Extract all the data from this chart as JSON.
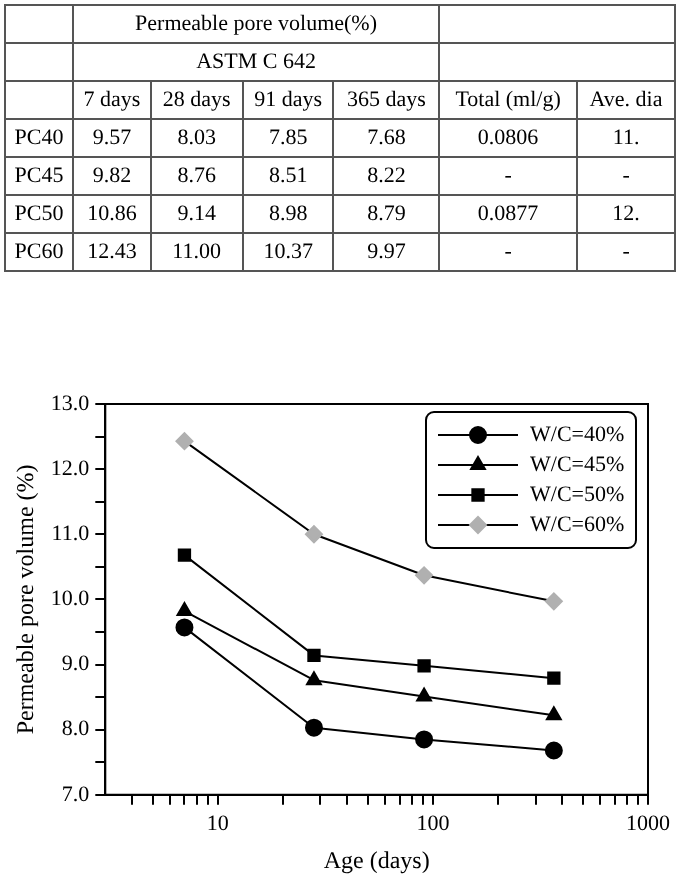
{
  "chart_data": [
    {
      "type": "other",
      "title": "Permeable pore volume(%)",
      "subtitle": "ASTM C 642",
      "categories": [
        "7 days",
        "28 days",
        "91 days",
        "365 days",
        "Total (ml/g)",
        "Ave. dia"
      ],
      "y_categories": [
        "PC40",
        "PC45",
        "PC50",
        "PC60"
      ],
      "cell_labels": [
        [
          "9.57",
          "8.03",
          "7.85",
          "7.68",
          "0.0806",
          "11."
        ],
        [
          "9.82",
          "8.76",
          "8.51",
          "8.22",
          "-",
          "-"
        ],
        [
          "10.86",
          "9.14",
          "8.98",
          "8.79",
          "0.0877",
          "12."
        ],
        [
          "12.43",
          "11.00",
          "10.37",
          "9.97",
          "-",
          "-"
        ]
      ]
    },
    {
      "type": "line",
      "xlabel": "Age (days)",
      "ylabel": "Permeable pore volume (%)",
      "x": [
        7,
        28,
        91,
        365
      ],
      "series": [
        {
          "name": "W/C=40%",
          "color": "#000000",
          "marker": "circle",
          "values": [
            9.57,
            8.03,
            7.85,
            7.68
          ]
        },
        {
          "name": "W/C=45%",
          "color": "#000000",
          "marker": "triangle",
          "values": [
            9.82,
            8.76,
            8.51,
            8.22
          ]
        },
        {
          "name": "W/C=50%",
          "color": "#000000",
          "marker": "square",
          "values": [
            10.68,
            9.14,
            8.98,
            8.79
          ]
        },
        {
          "name": "W/C=60%",
          "color": "#b0b0b0",
          "marker": "diamond",
          "values": [
            12.43,
            11.0,
            10.37,
            9.97
          ]
        }
      ],
      "log": "x",
      "xlim": [
        3,
        1000
      ],
      "xticks": [
        {
          "value": 4,
          "label": null
        },
        {
          "value": 5,
          "label": null
        },
        {
          "value": 6,
          "label": null
        },
        {
          "value": 7,
          "label": null
        },
        {
          "value": 8,
          "label": null
        },
        {
          "value": 9,
          "label": null
        },
        10,
        {
          "value": 20,
          "label": null
        },
        {
          "value": 30,
          "label": null
        },
        {
          "value": 40,
          "label": null
        },
        {
          "value": 50,
          "label": null
        },
        {
          "value": 60,
          "label": null
        },
        {
          "value": 70,
          "label": null
        },
        {
          "value": 80,
          "label": null
        },
        {
          "value": 90,
          "label": null
        },
        100,
        {
          "value": 200,
          "label": null
        },
        {
          "value": 300,
          "label": null
        },
        {
          "value": 400,
          "label": null
        },
        {
          "value": 500,
          "label": null
        },
        {
          "value": 600,
          "label": null
        },
        {
          "value": 700,
          "label": null
        },
        {
          "value": 800,
          "label": null
        },
        {
          "value": 900,
          "label": null
        },
        1000
      ],
      "ylim": [
        7,
        13
      ],
      "yticks": [
        {
          "value": 7,
          "label": "7.0"
        },
        {
          "value": 7.5,
          "label": null
        },
        {
          "value": 8,
          "label": "8.0"
        },
        {
          "value": 8.5,
          "label": null
        },
        {
          "value": 9,
          "label": "9.0"
        },
        {
          "value": 9.5,
          "label": null
        },
        {
          "value": 10,
          "label": "10.0"
        },
        {
          "value": 10.5,
          "label": null
        },
        {
          "value": 11,
          "label": "11.0"
        },
        {
          "value": 11.5,
          "label": null
        },
        {
          "value": 12,
          "label": "12.0"
        },
        {
          "value": 12.5,
          "label": null
        },
        {
          "value": 13,
          "label": "13.0"
        }
      ],
      "grid": false,
      "legend": "top right",
      "line_style": "solid"
    }
  ]
}
